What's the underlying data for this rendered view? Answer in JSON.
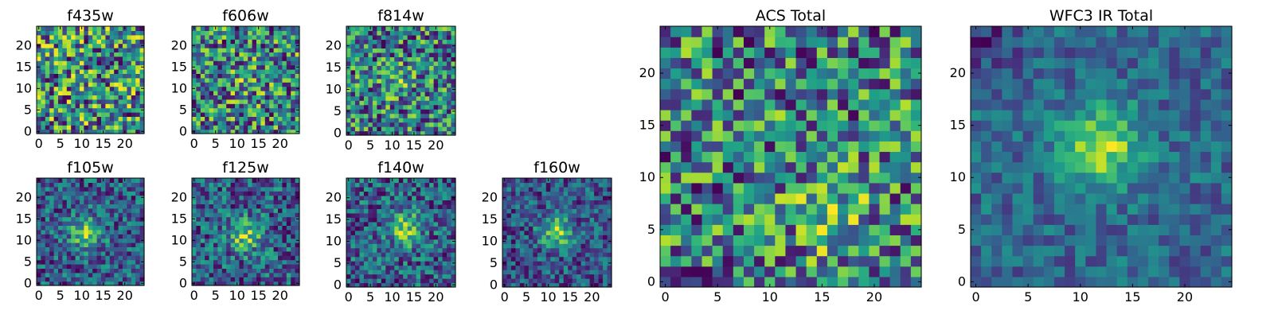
{
  "chart_data": [
    {
      "type": "heatmap",
      "title": "f435w",
      "grid_size": 25,
      "xlim": [
        -0.5,
        24.5
      ],
      "ylim": [
        -0.5,
        24.5
      ],
      "xticks": [
        0,
        5,
        10,
        15,
        20
      ],
      "yticks": [
        0,
        5,
        10,
        15,
        20
      ],
      "colormap": "viridis",
      "source_peak": null,
      "source_strength": 0.0,
      "noise_level": 0.5,
      "seed": 11,
      "interpolation": "nearest",
      "grid": false
    },
    {
      "type": "heatmap",
      "title": "f606w",
      "grid_size": 25,
      "xlim": [
        -0.5,
        24.5
      ],
      "ylim": [
        -0.5,
        24.5
      ],
      "xticks": [
        0,
        5,
        10,
        15,
        20
      ],
      "yticks": [
        0,
        5,
        10,
        15,
        20
      ],
      "colormap": "viridis",
      "source_peak": [
        12,
        12
      ],
      "source_strength": 0.15,
      "noise_level": 0.45,
      "seed": 23,
      "interpolation": "nearest",
      "grid": false
    },
    {
      "type": "heatmap",
      "title": "f814w",
      "grid_size": 25,
      "xlim": [
        -0.5,
        24.5
      ],
      "ylim": [
        -0.5,
        24.5
      ],
      "xticks": [
        0,
        5,
        10,
        15,
        20
      ],
      "yticks": [
        0,
        5,
        10,
        15,
        20
      ],
      "colormap": "viridis",
      "source_peak": [
        11,
        12
      ],
      "source_strength": 0.2,
      "noise_level": 0.45,
      "seed": 37,
      "interpolation": "nearest",
      "grid": false
    },
    {
      "type": "heatmap",
      "title": "f105w",
      "grid_size": 25,
      "xlim": [
        -0.5,
        24.5
      ],
      "ylim": [
        -0.5,
        24.5
      ],
      "xticks": [
        0,
        5,
        10,
        15,
        20
      ],
      "yticks": [
        0,
        5,
        10,
        15,
        20
      ],
      "colormap": "viridis",
      "source_peak": [
        11,
        12
      ],
      "source_strength": 0.55,
      "noise_level": 0.35,
      "seed": 41,
      "interpolation": "nearest",
      "grid": false
    },
    {
      "type": "heatmap",
      "title": "f125w",
      "grid_size": 25,
      "xlim": [
        -0.5,
        24.5
      ],
      "ylim": [
        -0.5,
        24.5
      ],
      "xticks": [
        0,
        5,
        10,
        15,
        20
      ],
      "yticks": [
        0,
        5,
        10,
        15,
        20
      ],
      "colormap": "viridis",
      "source_peak": [
        12,
        11
      ],
      "source_strength": 0.5,
      "noise_level": 0.35,
      "seed": 53,
      "interpolation": "nearest",
      "grid": false
    },
    {
      "type": "heatmap",
      "title": "f140w",
      "grid_size": 25,
      "xlim": [
        -0.5,
        24.5
      ],
      "ylim": [
        -0.5,
        24.5
      ],
      "xticks": [
        0,
        5,
        10,
        15,
        20
      ],
      "yticks": [
        0,
        5,
        10,
        15,
        20
      ],
      "colormap": "viridis",
      "source_peak": [
        13,
        13
      ],
      "source_strength": 0.55,
      "noise_level": 0.35,
      "seed": 67,
      "interpolation": "nearest",
      "grid": false
    },
    {
      "type": "heatmap",
      "title": "f160w",
      "grid_size": 25,
      "xlim": [
        -0.5,
        24.5
      ],
      "ylim": [
        -0.5,
        24.5
      ],
      "xticks": [
        0,
        5,
        10,
        15,
        20
      ],
      "yticks": [
        0,
        5,
        10,
        15,
        20
      ],
      "colormap": "viridis",
      "source_peak": [
        12,
        12
      ],
      "source_strength": 0.55,
      "noise_level": 0.3,
      "seed": 79,
      "interpolation": "nearest",
      "grid": false
    },
    {
      "type": "heatmap",
      "title": "ACS Total",
      "grid_size": 25,
      "xlim": [
        -0.5,
        24.5
      ],
      "ylim": [
        -0.5,
        24.5
      ],
      "xticks": [
        0,
        5,
        10,
        15,
        20
      ],
      "yticks": [
        0,
        5,
        10,
        15,
        20
      ],
      "colormap": "viridis",
      "source_peak": [
        16,
        6
      ],
      "source_strength": 0.2,
      "noise_level": 0.4,
      "seed": 97,
      "interpolation": "nearest",
      "grid": false
    },
    {
      "type": "heatmap",
      "title": "WFC3 IR Total",
      "grid_size": 25,
      "xlim": [
        -0.5,
        24.5
      ],
      "ylim": [
        -0.5,
        24.5
      ],
      "xticks": [
        0,
        5,
        10,
        15,
        20
      ],
      "yticks": [
        0,
        5,
        10,
        15,
        20
      ],
      "colormap": "viridis",
      "source_peak": [
        12,
        13
      ],
      "source_strength": 0.6,
      "noise_level": 0.2,
      "seed": 131,
      "background_gradient": "darker-top-left",
      "interpolation": "nearest",
      "grid": false
    }
  ]
}
